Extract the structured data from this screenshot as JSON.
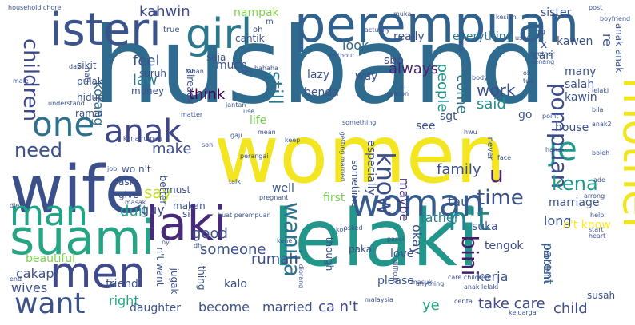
{
  "words": [
    {
      "text": "husband",
      "color": "#2f6b8e"
    },
    {
      "text": "women",
      "color": "#f3e51f"
    },
    {
      "text": "lelaki",
      "color": "#22968b"
    },
    {
      "text": "wife",
      "color": "#3b4f8a"
    },
    {
      "text": "perempuan",
      "color": "#31618d"
    },
    {
      "text": "isteri",
      "color": "#3a538b"
    },
    {
      "text": "girl",
      "color": "#2a788e"
    },
    {
      "text": "suami",
      "color": "#26a585"
    },
    {
      "text": "laki",
      "color": "#472a7a"
    },
    {
      "text": "woman",
      "color": "#365c8d"
    },
    {
      "text": "men",
      "color": "#3e4a89"
    },
    {
      "text": "mother",
      "color": "#f1e51c"
    },
    {
      "text": "man",
      "color": "#20a486"
    },
    {
      "text": "want",
      "color": "#3b528b"
    },
    {
      "text": "one",
      "color": "#2c728e"
    },
    {
      "text": "anak",
      "color": "#3f4788"
    },
    {
      "text": "je",
      "color": "#1f998a"
    },
    {
      "text": "n't",
      "color": "#25848e"
    },
    {
      "text": "wanita",
      "color": "#2c738e"
    },
    {
      "text": "pompuan",
      "color": "#3e4c8a"
    },
    {
      "text": "know",
      "color": "#3c4f8a"
    },
    {
      "text": "bini",
      "color": "#481b6d"
    },
    {
      "text": "children",
      "color": "#3f4889"
    },
    {
      "text": "kena",
      "color": "#1f9a8a"
    },
    {
      "text": "time",
      "color": "#3b528b"
    },
    {
      "text": "still",
      "color": "#2a788e"
    },
    {
      "text": "need",
      "color": "#3b518b"
    },
    {
      "text": "u",
      "color": "#482677"
    },
    {
      "text": "say",
      "color": "#c5e021"
    },
    {
      "text": "make",
      "color": "#3e4c8a"
    },
    {
      "text": "family",
      "color": "#3d4e8a"
    },
    {
      "text": "feel",
      "color": "#3b528b"
    },
    {
      "text": "think",
      "color": "#440154"
    },
    {
      "text": "law",
      "color": "#2a788e"
    },
    {
      "text": "kahwin",
      "color": "#3e4a89"
    },
    {
      "text": "nampak",
      "color": "#83d34b"
    },
    {
      "text": "sbb",
      "color": "#3d4d8a"
    },
    {
      "text": "look",
      "color": "#31688e"
    },
    {
      "text": "always",
      "color": "#482173"
    },
    {
      "text": "come",
      "color": "#2b758e"
    },
    {
      "text": "work",
      "color": "#3c508b"
    },
    {
      "text": "said",
      "color": "#218f8d"
    },
    {
      "text": "people",
      "color": "#21918c"
    },
    {
      "text": "korang",
      "color": "#2e6d8e"
    },
    {
      "text": "rumah",
      "color": "#3d4e8a"
    },
    {
      "text": "father",
      "color": "#26828e"
    },
    {
      "text": "good",
      "color": "#3c4f8a"
    },
    {
      "text": "someone",
      "color": "#3b528b"
    },
    {
      "text": "kerja",
      "color": "#3b528b"
    },
    {
      "text": "take care",
      "color": "#3e4989"
    },
    {
      "text": "become",
      "color": "#3b518b"
    },
    {
      "text": "married",
      "color": "#3d4e8a"
    },
    {
      "text": "ca n't",
      "color": "#3f4788"
    },
    {
      "text": "child",
      "color": "#3e4c8a"
    },
    {
      "text": "right",
      "color": "#21a685"
    },
    {
      "text": "duit",
      "color": "#20a386"
    },
    {
      "text": "guy",
      "color": "#3e4a89"
    },
    {
      "text": "maybe",
      "color": "#46337f"
    },
    {
      "text": "okay",
      "color": "#3c508b"
    },
    {
      "text": "tau",
      "color": "#3b528b"
    },
    {
      "text": "long",
      "color": "#3b528b"
    },
    {
      "text": "parent",
      "color": "#31688e"
    },
    {
      "text": "wives",
      "color": "#3b528b"
    },
    {
      "text": "cakap",
      "color": "#3b528b"
    },
    {
      "text": "beautiful",
      "color": "#7ad151"
    },
    {
      "text": "friend",
      "color": "#3b528b"
    },
    {
      "text": "daughter",
      "color": "#3b528b"
    },
    {
      "text": "ye",
      "color": "#22a884"
    },
    {
      "text": "please",
      "color": "#3b528b"
    },
    {
      "text": "love",
      "color": "#3b528b"
    },
    {
      "text": "kalo",
      "color": "#3b528b"
    },
    {
      "text": "n't know",
      "color": "#fde725"
    },
    {
      "text": "tengok",
      "color": "#3e4a89"
    },
    {
      "text": "house",
      "color": "#3b528b"
    },
    {
      "text": "marriage",
      "color": "#3b528b"
    },
    {
      "text": "suka",
      "color": "#3b528b"
    },
    {
      "text": "salah",
      "color": "#3b528b"
    },
    {
      "text": "many",
      "color": "#3b528b"
    },
    {
      "text": "kawin",
      "color": "#3b528b"
    },
    {
      "text": "go",
      "color": "#3b528b"
    },
    {
      "text": "sgt",
      "color": "#3b528b"
    },
    {
      "text": "see",
      "color": "#3b528b"
    },
    {
      "text": "life",
      "color": "#7ad151"
    },
    {
      "text": "much",
      "color": "#3b528b"
    },
    {
      "text": "benda",
      "color": "#3b528b"
    },
    {
      "text": "lazy",
      "color": "#3b528b"
    },
    {
      "text": "way",
      "color": "#3b528b"
    },
    {
      "text": "cari",
      "color": "#3b528b"
    },
    {
      "text": "everything",
      "color": "#2a788e"
    },
    {
      "text": "really",
      "color": "#3b528b"
    },
    {
      "text": "sister",
      "color": "#3b528b"
    },
    {
      "text": "kawen",
      "color": "#3b528b"
    },
    {
      "text": "x",
      "color": "#3b528b"
    },
    {
      "text": "re",
      "color": "#3b528b"
    },
    {
      "text": "anak anak",
      "color": "#3b528b"
    },
    {
      "text": "cantik",
      "color": "#3b528b"
    },
    {
      "text": "saja",
      "color": "#3b528b"
    },
    {
      "text": "suruh",
      "color": "#3b528b"
    },
    {
      "text": "sikit",
      "color": "#3b528b"
    },
    {
      "text": "pulak",
      "color": "#3b528b"
    },
    {
      "text": "hidup",
      "color": "#3b528b"
    },
    {
      "text": "money",
      "color": "#3b528b"
    },
    {
      "text": "ramai",
      "color": "#3b528b"
    },
    {
      "text": "wo n't",
      "color": "#3b528b"
    },
    {
      "text": "give",
      "color": "#3b528b"
    },
    {
      "text": "ask",
      "color": "#3b528b"
    },
    {
      "text": "si",
      "color": "#3b528b"
    },
    {
      "text": "must",
      "color": "#3b528b"
    },
    {
      "text": "makan",
      "color": "#3b528b"
    },
    {
      "text": "first",
      "color": "#7ad151"
    },
    {
      "text": "well",
      "color": "#3b528b"
    },
    {
      "text": "especially",
      "color": "#3b528b"
    },
    {
      "text": "sometime",
      "color": "#3b528b"
    },
    {
      "text": "though",
      "color": "#3b528b"
    },
    {
      "text": "pakai",
      "color": "#3b528b"
    },
    {
      "text": "problem",
      "color": "#3b528b"
    },
    {
      "text": "susah",
      "color": "#3b528b"
    },
    {
      "text": "jugak",
      "color": "#3b528b"
    },
    {
      "text": "n't want",
      "color": "#3b528b"
    },
    {
      "text": "thing",
      "color": "#3b528b"
    },
    {
      "text": "better",
      "color": "#3b528b"
    },
    {
      "text": "already",
      "color": "#3b528b"
    },
    {
      "text": "true",
      "color": "#3b528b"
    },
    {
      "text": "hati",
      "color": "#3b528b"
    },
    {
      "text": "household chore",
      "color": "#3b528b"
    },
    {
      "text": "boyfriend",
      "color": "#3b528b"
    },
    {
      "text": "post",
      "color": "#3b528b"
    },
    {
      "text": "kesian",
      "color": "#3b528b"
    },
    {
      "text": "used",
      "color": "#3b528b"
    },
    {
      "text": "brother",
      "color": "#3b528b"
    },
    {
      "text": "senang",
      "color": "#3b528b"
    },
    {
      "text": "reason",
      "color": "#3b528b"
    },
    {
      "text": "tua",
      "color": "#3b528b"
    },
    {
      "text": "never",
      "color": "#3b528b"
    },
    {
      "text": "something",
      "color": "#3b528b"
    },
    {
      "text": "mean",
      "color": "#3b528b"
    },
    {
      "text": "perangai",
      "color": "#3b528b"
    },
    {
      "text": "getting married",
      "color": "#3b528b"
    },
    {
      "text": "pregnant",
      "color": "#3b528b"
    },
    {
      "text": "malaysia",
      "color": "#3b528b"
    },
    {
      "text": "keluarga",
      "color": "#3b528b"
    },
    {
      "text": "anything",
      "color": "#3b528b"
    },
    {
      "text": "difficult",
      "color": "#3b528b"
    },
    {
      "text": "pasal",
      "color": "#3b528b"
    },
    {
      "text": "masuk",
      "color": "#3b528b"
    },
    {
      "text": "care children",
      "color": "#3b528b"
    },
    {
      "text": "cerita",
      "color": "#3b528b"
    },
    {
      "text": "asked",
      "color": "#3b528b"
    },
    {
      "text": "arrong",
      "color": "#3b528b"
    },
    {
      "text": "help",
      "color": "#3b528b"
    },
    {
      "text": "heart",
      "color": "#3b528b"
    },
    {
      "text": "start",
      "color": "#3b528b"
    },
    {
      "text": "face",
      "color": "#3b528b"
    },
    {
      "text": "point",
      "color": "#3b528b"
    },
    {
      "text": "haha",
      "color": "#3b528b"
    },
    {
      "text": "job",
      "color": "#3b528b"
    },
    {
      "text": "son",
      "color": "#3b528b"
    },
    {
      "text": "end",
      "color": "#3b528b"
    },
    {
      "text": "die",
      "color": "#3b528b"
    },
    {
      "text": "male",
      "color": "#3b528b"
    },
    {
      "text": "day",
      "color": "#3b528b"
    },
    {
      "text": "matter",
      "color": "#3b528b"
    },
    {
      "text": "understand",
      "color": "#3b528b"
    },
    {
      "text": "use",
      "color": "#3b528b"
    },
    {
      "text": "jantan",
      "color": "#3b528b"
    },
    {
      "text": "hahaha",
      "color": "#3b528b"
    },
    {
      "text": "fahan",
      "color": "#3b528b"
    },
    {
      "text": "kali",
      "color": "#3b528b"
    },
    {
      "text": "body",
      "color": "#3b528b"
    },
    {
      "text": "mithout",
      "color": "#3b528b"
    },
    {
      "text": "oh",
      "color": "#3b528b"
    },
    {
      "text": "m",
      "color": "#3b528b"
    },
    {
      "text": "muka",
      "color": "#3b528b"
    },
    {
      "text": "kerja rumah",
      "color": "#3b528b"
    },
    {
      "text": "gaji",
      "color": "#3b528b"
    },
    {
      "text": "dh",
      "color": "#3b528b"
    },
    {
      "text": "masak",
      "color": "#3b528b"
    },
    {
      "text": "kene",
      "color": "#3b528b"
    },
    {
      "text": "ny",
      "color": "#3b528b"
    },
    {
      "text": "diorang",
      "color": "#3b528b"
    },
    {
      "text": "anak lelaki",
      "color": "#3b528b"
    },
    {
      "text": "talk",
      "color": "#3b528b"
    },
    {
      "text": "hwu",
      "color": "#3b528b"
    },
    {
      "text": "actually",
      "color": "#3b528b"
    },
    {
      "text": "keep",
      "color": "#3b528b"
    },
    {
      "text": "buat perempuan",
      "color": "#3b528b"
    },
    {
      "text": "ok",
      "color": "#3b528b"
    },
    {
      "text": "lelaki",
      "color": "#3b528b"
    },
    {
      "text": "kot",
      "color": "#3b528b"
    },
    {
      "text": "ade",
      "color": "#3b528b"
    },
    {
      "text": "boleh",
      "color": "#3b528b"
    },
    {
      "text": "anak2",
      "color": "#3b528b"
    },
    {
      "text": "bila",
      "color": "#3b528b"
    },
    {
      "text": "yg",
      "color": "#3b528b"
    },
    {
      "text": "ni",
      "color": "#3b528b"
    },
    {
      "text": "dia",
      "color": "#3b528b"
    }
  ]
}
